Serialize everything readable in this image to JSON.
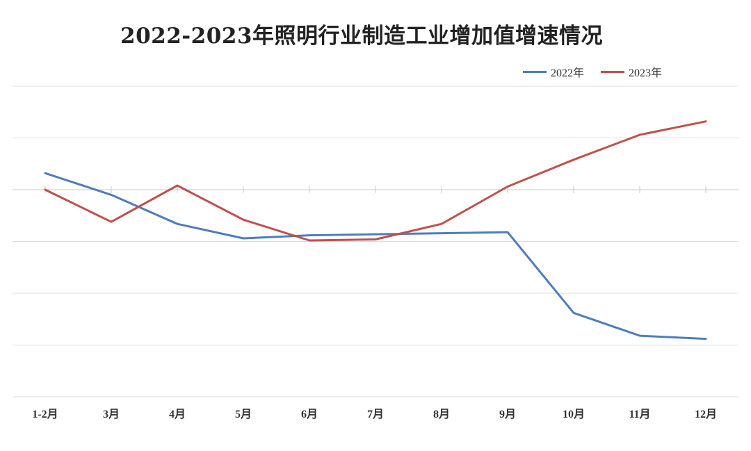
{
  "chart_data": {
    "type": "line",
    "title": "2022-2023年照明行业制造工业增加值增速情况",
    "categories": [
      "1-2月",
      "3月",
      "4月",
      "5月",
      "6月",
      "7月",
      "8月",
      "9月",
      "10月",
      "11月",
      "12月"
    ],
    "series": [
      {
        "name": "2022年",
        "color": "#4e7dbd",
        "values": [
          1.6,
          -0.5,
          -3.3,
          -4.7,
          -4.4,
          -4.3,
          -4.2,
          -4.1,
          -11.9,
          -14.1,
          -14.4
        ]
      },
      {
        "name": "2023年",
        "color": "#c0504d",
        "values": [
          0.0,
          -3.1,
          0.4,
          -2.9,
          -4.9,
          -4.8,
          -3.3,
          0.3,
          2.9,
          5.3,
          6.6
        ]
      }
    ],
    "ylim": [
      -20,
      10
    ],
    "y_gridlines": [
      10,
      5,
      0,
      -5,
      -10,
      -15,
      -20
    ],
    "y_tick_labels_shown": false,
    "grid": true,
    "legend_position": "top-right",
    "xlabel": "",
    "ylabel": ""
  }
}
